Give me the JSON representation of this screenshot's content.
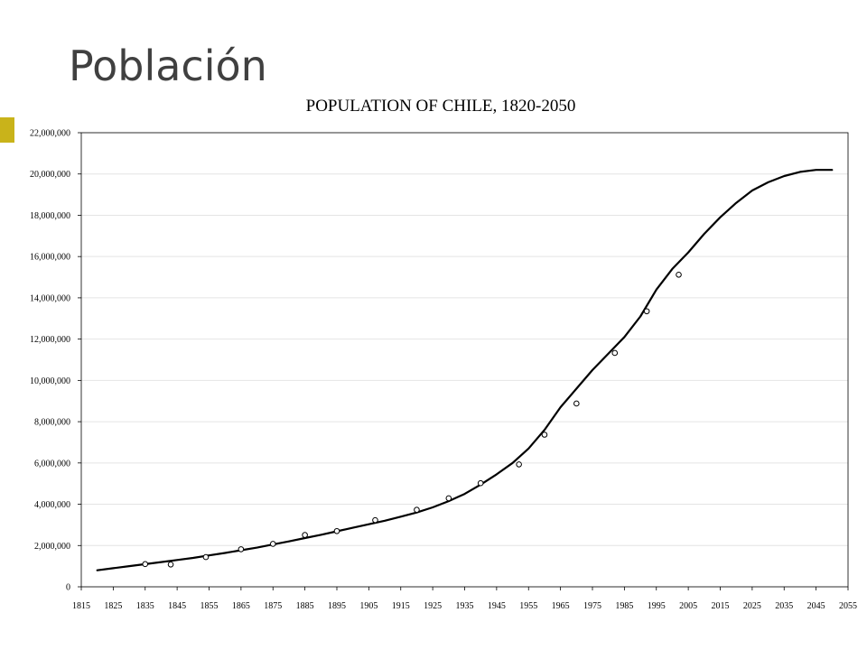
{
  "slide": {
    "title": "Población"
  },
  "colors": {
    "accent": "#c9b31a",
    "title_text": "#404040",
    "line": "#000000",
    "grid": "#e4e4e4"
  },
  "chart_data": {
    "type": "line",
    "title": "POPULATION OF CHILE, 1820-2050",
    "xlabel": "",
    "ylabel": "",
    "xlim": [
      1815,
      2055
    ],
    "ylim": [
      0,
      22000000
    ],
    "x_ticks": [
      1815,
      1825,
      1835,
      1845,
      1855,
      1865,
      1875,
      1885,
      1895,
      1905,
      1915,
      1925,
      1935,
      1945,
      1955,
      1965,
      1975,
      1985,
      1995,
      2005,
      2015,
      2025,
      2035,
      2045,
      2055
    ],
    "y_ticks": [
      0,
      2000000,
      4000000,
      6000000,
      8000000,
      10000000,
      12000000,
      14000000,
      16000000,
      18000000,
      20000000,
      22000000
    ],
    "y_tick_labels": [
      "0",
      "2,000,000",
      "4,000,000",
      "6,000,000",
      "8,000,000",
      "10,000,000",
      "12,000,000",
      "14,000,000",
      "16,000,000",
      "18,000,000",
      "20,000,000",
      "22,000,000"
    ],
    "grid": "horizontal",
    "series": [
      {
        "style": "line",
        "x": [
          1820,
          1825,
          1830,
          1835,
          1840,
          1845,
          1850,
          1855,
          1860,
          1865,
          1870,
          1875,
          1880,
          1885,
          1890,
          1895,
          1900,
          1905,
          1910,
          1915,
          1920,
          1925,
          1930,
          1935,
          1940,
          1945,
          1950,
          1955,
          1960,
          1965,
          1970,
          1975,
          1980,
          1985,
          1990,
          1995,
          2000,
          2005,
          2010,
          2015,
          2020,
          2025,
          2030,
          2035,
          2040,
          2045,
          2050
        ],
        "y": [
          800000,
          900000,
          1000000,
          1100000,
          1200000,
          1300000,
          1400000,
          1520000,
          1640000,
          1770000,
          1900000,
          2050000,
          2200000,
          2360000,
          2520000,
          2690000,
          2860000,
          3030000,
          3200000,
          3400000,
          3600000,
          3850000,
          4150000,
          4500000,
          4950000,
          5450000,
          6000000,
          6700000,
          7600000,
          8700000,
          9600000,
          10500000,
          11300000,
          12100000,
          13100000,
          14400000,
          15400000,
          16200000,
          17100000,
          17900000,
          18600000,
          19200000,
          19600000,
          19900000,
          20100000,
          20200000,
          20200000
        ]
      },
      {
        "style": "markers",
        "x": [
          1835,
          1843,
          1854,
          1865,
          1875,
          1885,
          1895,
          1907,
          1920,
          1930,
          1940,
          1952,
          1960,
          1970,
          1982,
          1992,
          2002
        ],
        "y": [
          1100000,
          1080000,
          1440000,
          1820000,
          2080000,
          2510000,
          2700000,
          3230000,
          3730000,
          4290000,
          5020000,
          5930000,
          7370000,
          8880000,
          11330000,
          13350000,
          15120000
        ]
      }
    ]
  }
}
